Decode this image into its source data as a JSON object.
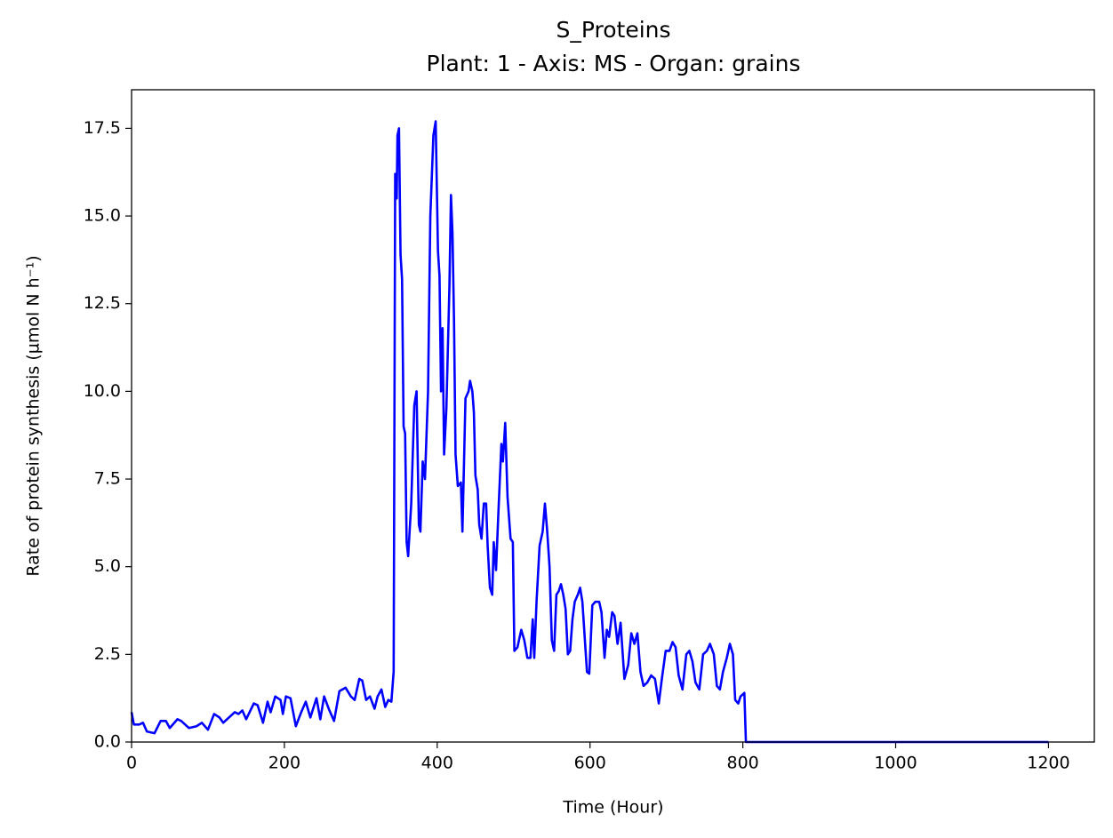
{
  "chart_data": {
    "type": "line",
    "title": "S_Proteins",
    "subtitle": "Plant: 1 - Axis: MS - Organ: grains",
    "x_label": "Time (Hour)",
    "y_label": "Rate of protein synthesis (µmol N h⁻¹)",
    "color": "#0000ff",
    "xlim": [
      0,
      1260
    ],
    "ylim": [
      0,
      18.6
    ],
    "xticks": [
      0,
      200,
      400,
      600,
      800,
      1000,
      1200
    ],
    "yticks": [
      {
        "value": 0,
        "label": "0.0"
      },
      2.5,
      {
        "value": 5,
        "label": "5.0"
      },
      7.5,
      {
        "value": 10,
        "label": "10.0"
      },
      12.5,
      {
        "value": 15,
        "label": "15.0"
      },
      17.5
    ],
    "x": [
      0,
      3,
      10,
      15,
      20,
      30,
      38,
      45,
      50,
      60,
      65,
      75,
      85,
      92,
      100,
      108,
      115,
      120,
      125,
      135,
      140,
      145,
      150,
      160,
      165,
      172,
      178,
      182,
      188,
      195,
      198,
      202,
      208,
      215,
      222,
      228,
      234,
      242,
      247,
      252,
      258,
      265,
      272,
      280,
      287,
      292,
      298,
      302,
      307,
      312,
      318,
      322,
      327,
      332,
      336,
      340,
      343,
      345,
      347,
      348,
      350,
      352,
      354,
      356,
      358,
      360,
      362,
      366,
      370,
      373,
      376,
      378,
      381,
      384,
      388,
      391,
      395,
      398,
      401,
      403,
      405,
      407,
      409,
      412,
      416,
      418,
      420,
      422,
      424,
      427,
      431,
      433,
      437,
      441,
      443,
      446,
      448,
      450,
      453,
      455,
      458,
      461,
      464,
      466,
      469,
      472,
      474,
      477,
      480,
      484,
      486,
      489,
      492,
      496,
      499,
      501,
      505,
      510,
      514,
      518,
      522,
      525,
      527,
      530,
      534,
      538,
      541,
      544,
      547,
      550,
      553,
      556,
      559,
      562,
      565,
      568,
      571,
      574,
      577,
      580,
      584,
      587,
      590,
      593,
      596,
      599,
      603,
      607,
      612,
      615,
      619,
      622,
      625,
      629,
      632,
      636,
      640,
      645,
      650,
      654,
      658,
      662,
      666,
      670,
      675,
      680,
      685,
      690,
      694,
      699,
      704,
      708,
      712,
      716,
      721,
      726,
      730,
      734,
      738,
      743,
      748,
      753,
      757,
      762,
      766,
      770,
      774,
      779,
      783,
      787,
      790,
      794,
      797,
      802,
      804,
      1200
    ],
    "values": [
      0.85,
      0.5,
      0.5,
      0.55,
      0.3,
      0.25,
      0.6,
      0.6,
      0.4,
      0.65,
      0.6,
      0.4,
      0.45,
      0.55,
      0.35,
      0.8,
      0.7,
      0.55,
      0.65,
      0.85,
      0.8,
      0.9,
      0.65,
      1.1,
      1.05,
      0.55,
      1.15,
      0.85,
      1.3,
      1.2,
      0.8,
      1.3,
      1.25,
      0.45,
      0.85,
      1.15,
      0.7,
      1.25,
      0.65,
      1.3,
      0.95,
      0.6,
      1.45,
      1.55,
      1.3,
      1.2,
      1.8,
      1.75,
      1.2,
      1.3,
      0.95,
      1.3,
      1.5,
      1.0,
      1.2,
      1.15,
      2.0,
      16.2,
      15.5,
      17.3,
      17.5,
      13.9,
      13.2,
      9.0,
      8.8,
      5.7,
      5.3,
      6.8,
      9.6,
      10.0,
      6.2,
      6.0,
      8.0,
      7.5,
      10.0,
      15.0,
      17.3,
      17.7,
      14.0,
      13.3,
      10.0,
      11.8,
      8.2,
      9.5,
      13.0,
      15.6,
      14.5,
      12.0,
      8.2,
      7.3,
      7.4,
      6.0,
      9.8,
      10.0,
      10.3,
      10.0,
      9.4,
      7.6,
      7.2,
      6.2,
      5.8,
      6.8,
      6.8,
      5.6,
      4.4,
      4.2,
      5.7,
      4.9,
      6.5,
      8.5,
      8.0,
      9.1,
      7.0,
      5.8,
      5.7,
      2.6,
      2.7,
      3.2,
      2.9,
      2.4,
      2.4,
      3.5,
      2.4,
      4.0,
      5.6,
      6.0,
      6.8,
      6.0,
      5.0,
      2.9,
      2.6,
      4.2,
      4.3,
      4.5,
      4.2,
      3.8,
      2.5,
      2.6,
      3.5,
      4.0,
      4.2,
      4.4,
      4.0,
      3.0,
      2.0,
      1.95,
      3.9,
      4.0,
      4.0,
      3.7,
      2.4,
      3.2,
      3.0,
      3.7,
      3.6,
      2.8,
      3.4,
      1.8,
      2.2,
      3.1,
      2.8,
      3.1,
      2.0,
      1.6,
      1.7,
      1.9,
      1.8,
      1.1,
      1.8,
      2.6,
      2.6,
      2.85,
      2.7,
      1.9,
      1.5,
      2.5,
      2.6,
      2.3,
      1.7,
      1.5,
      2.5,
      2.6,
      2.8,
      2.5,
      1.6,
      1.5,
      2.0,
      2.4,
      2.8,
      2.5,
      1.2,
      1.1,
      1.3,
      1.4,
      0,
      0
    ]
  }
}
